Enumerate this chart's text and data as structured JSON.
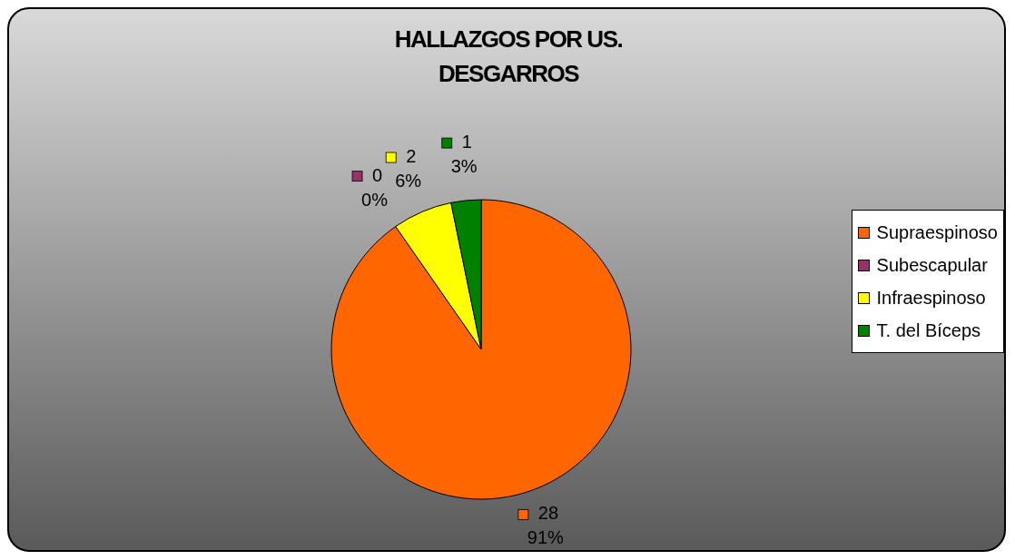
{
  "chart_data": {
    "type": "pie",
    "title": "HALLAZGOS POR US.\nDESGARROS",
    "categories": [
      "Supraespinoso",
      "Subescapular",
      "Infraespinoso",
      "T. del Bíceps"
    ],
    "values": [
      28,
      0,
      2,
      1
    ],
    "colors": [
      "#ff6600",
      "#993366",
      "#ffff00",
      "#008000"
    ],
    "value_labels": [
      "28\n91%",
      "0\n0%",
      "2\n6%",
      "1\n3%"
    ],
    "legend": "right"
  }
}
